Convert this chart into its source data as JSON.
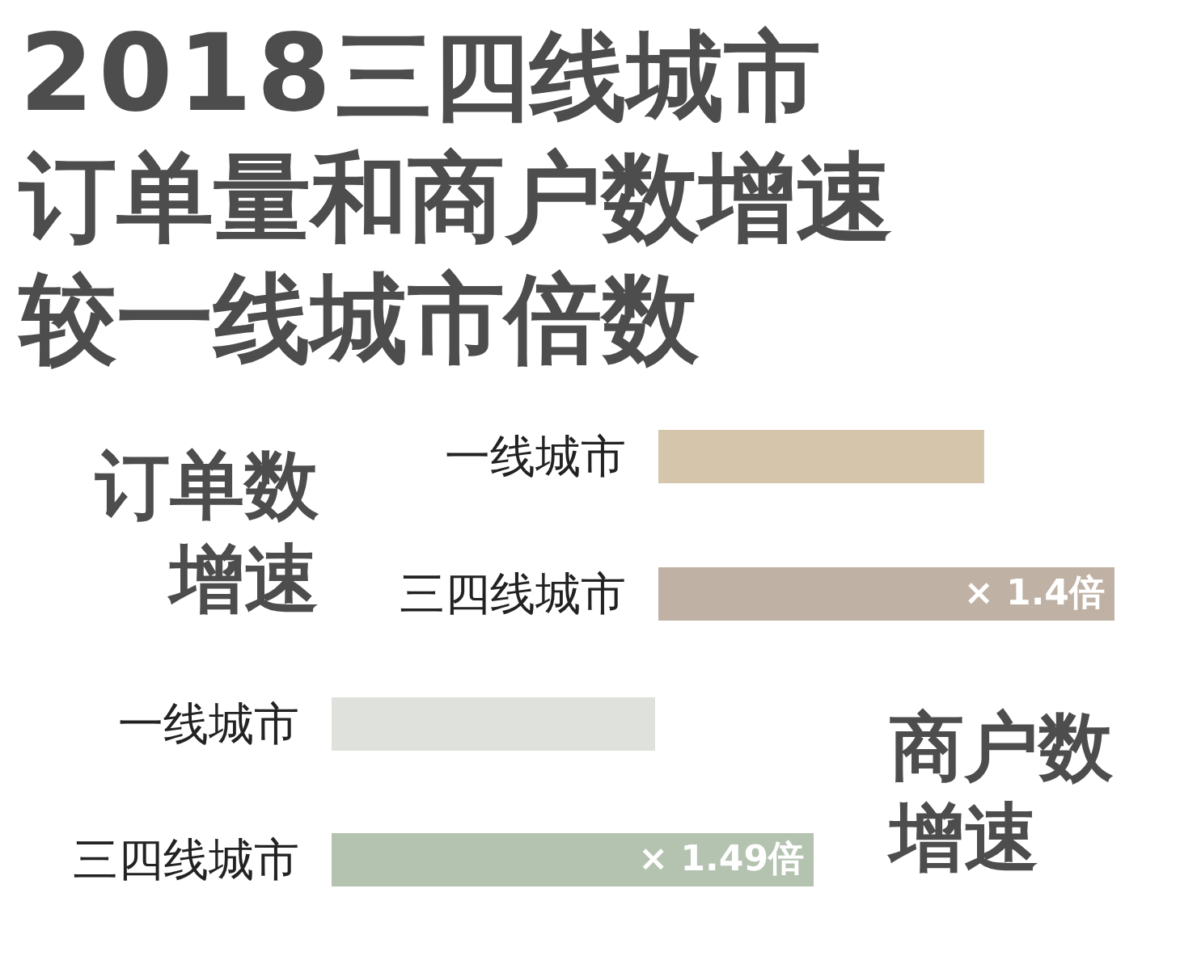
{
  "chart_data": [
    {
      "type": "bar",
      "orientation": "horizontal",
      "title": "2018三四线城市订单量和商户数增速较一线城市倍数",
      "ylabel": "订单数增速",
      "categories": [
        "一线城市",
        "三四线城市"
      ],
      "values": [
        1,
        1.4
      ],
      "colors": [
        "#d4c5ab",
        "#bfb2a5"
      ],
      "value_labels": [
        null,
        "× 1.4倍"
      ],
      "tick_labels": "y"
    },
    {
      "type": "bar",
      "orientation": "horizontal",
      "ylabel": "商户数增速",
      "categories": [
        "一线城市",
        "三四线城市"
      ],
      "values": [
        1,
        1.49
      ],
      "colors": [
        "#dfe2dc",
        "#b4c2b0"
      ],
      "value_labels": [
        null,
        "× 1.49倍"
      ],
      "tick_labels": "y"
    }
  ]
}
